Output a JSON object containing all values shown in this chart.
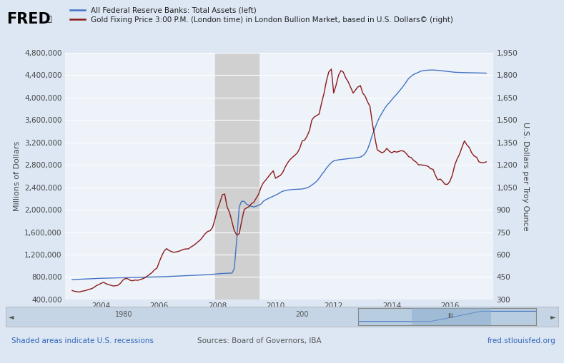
{
  "legend_line1": "All Federal Reserve Banks: Total Assets (left)",
  "legend_line2": "Gold Fixing Price 3:00 P.M. (London time) in London Bullion Market, based in U.S. Dollars© (right)",
  "ylabel_left": "Millions of Dollars",
  "ylabel_right": "U.S. Dollars per Troy Ounce",
  "sources_text": "Sources: Board of Governors, IBA",
  "fred_watermark": "fred.stlouisfed.org",
  "recession_note": "Shaded areas indicate U.S. recessions",
  "background_color": "#dce7f3",
  "plot_bg_color": "#eef3fa",
  "line_color_blue": "#4472c4",
  "line_color_red": "#8B1A1A",
  "recession_color": "#d0d0d0",
  "ylim_left": [
    400000,
    4800000
  ],
  "ylim_right": [
    300,
    1950
  ],
  "yticks_left": [
    400000,
    800000,
    1200000,
    1600000,
    2000000,
    2400000,
    2800000,
    3200000,
    3600000,
    4000000,
    4400000,
    4800000
  ],
  "yticks_right": [
    300,
    450,
    600,
    750,
    900,
    1050,
    1200,
    1350,
    1500,
    1650,
    1800,
    1950
  ],
  "recession_bands": [
    [
      2007.917,
      2009.417
    ]
  ],
  "xlim": [
    2002.75,
    2017.5
  ],
  "xtick_positions": [
    2004,
    2006,
    2008,
    2010,
    2012,
    2014,
    2016
  ],
  "xtick_labels": [
    "2004",
    "2006",
    "2008",
    "2010",
    "2012",
    "2014",
    "2016"
  ],
  "fed_data": {
    "years": [
      2003.0,
      2003.08,
      2003.17,
      2003.25,
      2003.33,
      2003.42,
      2003.5,
      2003.58,
      2003.67,
      2003.75,
      2003.83,
      2003.92,
      2004.0,
      2004.08,
      2004.17,
      2004.25,
      2004.33,
      2004.42,
      2004.5,
      2004.58,
      2004.67,
      2004.75,
      2004.83,
      2004.92,
      2005.0,
      2005.08,
      2005.17,
      2005.25,
      2005.33,
      2005.42,
      2005.5,
      2005.58,
      2005.67,
      2005.75,
      2005.83,
      2005.92,
      2006.0,
      2006.08,
      2006.17,
      2006.25,
      2006.33,
      2006.42,
      2006.5,
      2006.58,
      2006.67,
      2006.75,
      2006.83,
      2006.92,
      2007.0,
      2007.08,
      2007.17,
      2007.25,
      2007.33,
      2007.42,
      2007.5,
      2007.58,
      2007.67,
      2007.75,
      2007.83,
      2007.92,
      2008.0,
      2008.08,
      2008.17,
      2008.25,
      2008.33,
      2008.42,
      2008.5,
      2008.58,
      2008.67,
      2008.75,
      2008.83,
      2008.92,
      2009.0,
      2009.08,
      2009.17,
      2009.25,
      2009.33,
      2009.42,
      2009.5,
      2009.58,
      2009.67,
      2009.75,
      2009.83,
      2009.92,
      2010.0,
      2010.08,
      2010.17,
      2010.25,
      2010.33,
      2010.42,
      2010.5,
      2010.58,
      2010.67,
      2010.75,
      2010.83,
      2010.92,
      2011.0,
      2011.08,
      2011.17,
      2011.25,
      2011.33,
      2011.42,
      2011.5,
      2011.58,
      2011.67,
      2011.75,
      2011.83,
      2011.92,
      2012.0,
      2012.08,
      2012.17,
      2012.25,
      2012.33,
      2012.42,
      2012.5,
      2012.58,
      2012.67,
      2012.75,
      2012.83,
      2012.92,
      2013.0,
      2013.08,
      2013.17,
      2013.25,
      2013.33,
      2013.42,
      2013.5,
      2013.58,
      2013.67,
      2013.75,
      2013.83,
      2013.92,
      2014.0,
      2014.08,
      2014.17,
      2014.25,
      2014.33,
      2014.42,
      2014.5,
      2014.58,
      2014.67,
      2014.75,
      2014.83,
      2014.92,
      2015.0,
      2015.08,
      2015.17,
      2015.25,
      2015.33,
      2015.42,
      2015.5,
      2015.58,
      2015.67,
      2015.75,
      2015.83,
      2015.92,
      2016.0,
      2016.08,
      2016.17,
      2016.25,
      2016.33,
      2016.42,
      2016.5,
      2016.58,
      2016.67,
      2016.75,
      2016.83,
      2016.92,
      2017.0,
      2017.08,
      2017.17,
      2017.25
    ],
    "values": [
      754000,
      756000,
      758000,
      760000,
      762000,
      764000,
      766000,
      768000,
      770000,
      772000,
      774000,
      776000,
      778000,
      779000,
      780000,
      781000,
      782000,
      783000,
      784000,
      785000,
      786000,
      787000,
      788000,
      789000,
      790000,
      791000,
      792000,
      793000,
      794000,
      795000,
      796000,
      797000,
      798000,
      799000,
      800000,
      801000,
      802000,
      804000,
      806000,
      808000,
      810000,
      812000,
      814000,
      816000,
      818000,
      820000,
      822000,
      824000,
      826000,
      828000,
      830000,
      832000,
      834000,
      836000,
      838000,
      840000,
      842000,
      845000,
      848000,
      852000,
      856000,
      860000,
      863000,
      866000,
      868000,
      869000,
      870000,
      950000,
      1500000,
      2050000,
      2150000,
      2150000,
      2100000,
      2080000,
      2060000,
      2050000,
      2060000,
      2080000,
      2100000,
      2150000,
      2180000,
      2200000,
      2220000,
      2240000,
      2260000,
      2280000,
      2310000,
      2330000,
      2340000,
      2350000,
      2355000,
      2360000,
      2362000,
      2365000,
      2368000,
      2370000,
      2380000,
      2390000,
      2410000,
      2440000,
      2470000,
      2510000,
      2560000,
      2620000,
      2680000,
      2740000,
      2790000,
      2840000,
      2870000,
      2880000,
      2890000,
      2895000,
      2900000,
      2905000,
      2910000,
      2915000,
      2920000,
      2925000,
      2930000,
      2940000,
      2960000,
      3000000,
      3080000,
      3200000,
      3330000,
      3450000,
      3560000,
      3650000,
      3730000,
      3800000,
      3860000,
      3910000,
      3960000,
      4010000,
      4060000,
      4110000,
      4160000,
      4220000,
      4280000,
      4340000,
      4380000,
      4410000,
      4430000,
      4450000,
      4470000,
      4480000,
      4485000,
      4488000,
      4490000,
      4490000,
      4488000,
      4485000,
      4480000,
      4475000,
      4470000,
      4465000,
      4460000,
      4455000,
      4450000,
      4448000,
      4446000,
      4445000,
      4444000,
      4443000,
      4442000,
      4441000,
      4440000,
      4439000,
      4438000,
      4437000,
      4436000,
      4435000
    ]
  },
  "gold_data": {
    "years": [
      2003.0,
      2003.08,
      2003.17,
      2003.25,
      2003.33,
      2003.42,
      2003.5,
      2003.58,
      2003.67,
      2003.75,
      2003.83,
      2003.92,
      2004.0,
      2004.08,
      2004.17,
      2004.25,
      2004.33,
      2004.42,
      2004.5,
      2004.58,
      2004.67,
      2004.75,
      2004.83,
      2004.92,
      2005.0,
      2005.08,
      2005.17,
      2005.25,
      2005.33,
      2005.42,
      2005.5,
      2005.58,
      2005.67,
      2005.75,
      2005.83,
      2005.92,
      2006.0,
      2006.08,
      2006.17,
      2006.25,
      2006.33,
      2006.42,
      2006.5,
      2006.58,
      2006.67,
      2006.75,
      2006.83,
      2006.92,
      2007.0,
      2007.08,
      2007.17,
      2007.25,
      2007.33,
      2007.42,
      2007.5,
      2007.58,
      2007.67,
      2007.75,
      2007.83,
      2007.92,
      2008.0,
      2008.08,
      2008.17,
      2008.25,
      2008.33,
      2008.42,
      2008.5,
      2008.58,
      2008.67,
      2008.75,
      2008.83,
      2008.92,
      2009.0,
      2009.08,
      2009.17,
      2009.25,
      2009.33,
      2009.42,
      2009.5,
      2009.58,
      2009.67,
      2009.75,
      2009.83,
      2009.92,
      2010.0,
      2010.08,
      2010.17,
      2010.25,
      2010.33,
      2010.42,
      2010.5,
      2010.58,
      2010.67,
      2010.75,
      2010.83,
      2010.92,
      2011.0,
      2011.08,
      2011.17,
      2011.25,
      2011.33,
      2011.42,
      2011.5,
      2011.58,
      2011.67,
      2011.75,
      2011.83,
      2011.92,
      2012.0,
      2012.08,
      2012.17,
      2012.25,
      2012.33,
      2012.42,
      2012.5,
      2012.58,
      2012.67,
      2012.75,
      2012.83,
      2012.92,
      2013.0,
      2013.08,
      2013.17,
      2013.25,
      2013.33,
      2013.42,
      2013.5,
      2013.58,
      2013.67,
      2013.75,
      2013.83,
      2013.92,
      2014.0,
      2014.08,
      2014.17,
      2014.25,
      2014.33,
      2014.42,
      2014.5,
      2014.58,
      2014.67,
      2014.75,
      2014.83,
      2014.92,
      2015.0,
      2015.08,
      2015.17,
      2015.25,
      2015.33,
      2015.42,
      2015.5,
      2015.58,
      2015.67,
      2015.75,
      2015.83,
      2015.92,
      2016.0,
      2016.08,
      2016.17,
      2016.25,
      2016.33,
      2016.42,
      2016.5,
      2016.58,
      2016.67,
      2016.75,
      2016.83,
      2016.92,
      2017.0,
      2017.08,
      2017.17,
      2017.25
    ],
    "values": [
      360,
      355,
      352,
      350,
      355,
      358,
      362,
      368,
      372,
      380,
      392,
      400,
      408,
      415,
      405,
      400,
      395,
      390,
      392,
      395,
      410,
      430,
      440,
      438,
      428,
      425,
      430,
      428,
      432,
      438,
      445,
      455,
      468,
      480,
      498,
      510,
      552,
      590,
      625,
      640,
      628,
      620,
      615,
      618,
      622,
      628,
      635,
      638,
      638,
      650,
      660,
      672,
      685,
      700,
      720,
      740,
      755,
      760,
      780,
      840,
      902,
      945,
      1000,
      1005,
      920,
      880,
      820,
      760,
      730,
      740,
      820,
      900,
      912,
      920,
      940,
      950,
      975,
      1005,
      1050,
      1080,
      1100,
      1120,
      1140,
      1160,
      1110,
      1120,
      1130,
      1150,
      1185,
      1215,
      1235,
      1250,
      1265,
      1280,
      1310,
      1360,
      1365,
      1390,
      1430,
      1500,
      1520,
      1530,
      1540,
      1610,
      1680,
      1760,
      1820,
      1840,
      1680,
      1730,
      1800,
      1830,
      1820,
      1780,
      1755,
      1720,
      1680,
      1700,
      1720,
      1730,
      1680,
      1660,
      1620,
      1590,
      1480,
      1380,
      1300,
      1290,
      1280,
      1290,
      1310,
      1290,
      1280,
      1290,
      1285,
      1290,
      1295,
      1290,
      1275,
      1255,
      1248,
      1230,
      1220,
      1200,
      1200,
      1198,
      1195,
      1190,
      1175,
      1170,
      1130,
      1100,
      1105,
      1090,
      1070,
      1070,
      1090,
      1130,
      1200,
      1240,
      1270,
      1320,
      1360,
      1335,
      1315,
      1280,
      1260,
      1250,
      1220,
      1215,
      1215,
      1220
    ]
  }
}
